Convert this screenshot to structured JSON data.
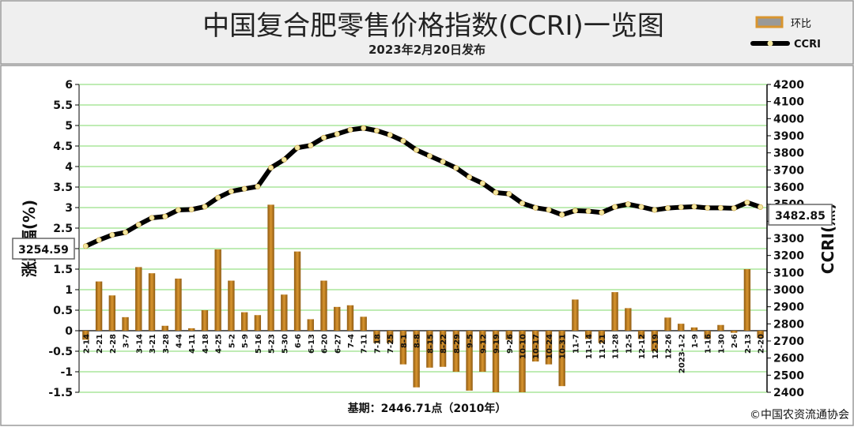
{
  "header": {
    "title": "中国复合肥零售价格指数(CCRI)一览图",
    "subtitle": "2023年2月20日发布"
  },
  "footer": {
    "base_note": "基期：2446.71点（2010年）",
    "copyright": "©中国农资流通协会"
  },
  "colors": {
    "bar": "#D9952F",
    "bar_dark": "#8E5A12",
    "line": "#000000",
    "marker": "#F2E6A0",
    "plot_bg": "#FFFFFF",
    "grid": "#7FD96A",
    "header_bg": "#EFEFEF"
  },
  "chart_data": {
    "type": "bar+line",
    "categories": [
      "2-14",
      "2-21",
      "2-28",
      "3-7",
      "3-14",
      "3-21",
      "3-28",
      "4-4",
      "4-11",
      "4-18",
      "4-25",
      "5-2",
      "5-9",
      "5-16",
      "5-23",
      "5-30",
      "6-6",
      "6-13",
      "6-20",
      "6-27",
      "7-4",
      "7-11",
      "7-18",
      "7-25",
      "8-1",
      "8-8",
      "8-15",
      "8-22",
      "8-29",
      "9-5",
      "9-12",
      "9-19",
      "9-26",
      "10-10",
      "10-17",
      "10-24",
      "10-31",
      "11-7",
      "11-14",
      "11-21",
      "11-28",
      "12-5",
      "12-12",
      "12-19",
      "12-26",
      "2023-1-2",
      "1-9",
      "1-16",
      "1-30",
      "2-6",
      "2-13",
      "2-20"
    ],
    "y_left": {
      "label": "涨跌幅(%)",
      "min": -1.5,
      "max": 6,
      "step": 0.5,
      "ticks": [
        "6",
        "5.5",
        "5",
        "4.5",
        "4",
        "3.5",
        "3",
        "2.5",
        "2",
        "1.5",
        "1",
        "0.5",
        "0",
        "-0.5",
        "-1",
        "-1.5"
      ]
    },
    "y_right": {
      "label": "CCRI(点)",
      "min": 2400,
      "max": 4200,
      "step": 100,
      "ticks": [
        "4200",
        "4100",
        "4000",
        "3900",
        "3800",
        "3700",
        "3600",
        "3500",
        "3400",
        "3300",
        "3200",
        "3100",
        "3000",
        "2900",
        "2800",
        "2700",
        "2600",
        "2500",
        "2400"
      ]
    },
    "series": [
      {
        "name": "环比",
        "type": "bar",
        "axis": "left",
        "values": [
          -0.22,
          1.2,
          0.86,
          0.33,
          1.55,
          1.4,
          0.12,
          1.27,
          0.06,
          0.5,
          1.98,
          1.22,
          0.45,
          0.38,
          3.07,
          0.88,
          1.93,
          0.28,
          1.22,
          0.58,
          0.62,
          0.34,
          -0.3,
          -0.3,
          -0.82,
          -1.38,
          -0.9,
          -0.88,
          -1.0,
          -1.46,
          -1.0,
          -1.5,
          -0.22,
          -1.5,
          -0.75,
          -0.82,
          -1.35,
          0.76,
          -0.2,
          -0.3,
          0.94,
          0.55,
          -0.2,
          -0.5,
          0.32,
          0.17,
          0.08,
          -0.2,
          0.14,
          -0.05,
          1.5,
          -0.18
        ]
      },
      {
        "name": "CCRI",
        "type": "line",
        "axis": "right",
        "values": [
          3254.59,
          3290,
          3320,
          3335,
          3380,
          3420,
          3428,
          3466,
          3469,
          3485,
          3538,
          3575,
          3590,
          3603,
          3713,
          3760,
          3830,
          3843,
          3889,
          3910,
          3935,
          3945,
          3930,
          3905,
          3870,
          3817,
          3782,
          3748,
          3712,
          3658,
          3622,
          3568,
          3560,
          3505,
          3479,
          3467,
          3438,
          3462,
          3459,
          3451,
          3484,
          3500,
          3484,
          3466,
          3477,
          3482,
          3485,
          3478,
          3478,
          3476,
          3510,
          3482.85
        ]
      }
    ],
    "callouts": {
      "first": "3254.59",
      "last": "3482.85"
    },
    "legend": {
      "position": "top-right"
    },
    "grid": true
  }
}
